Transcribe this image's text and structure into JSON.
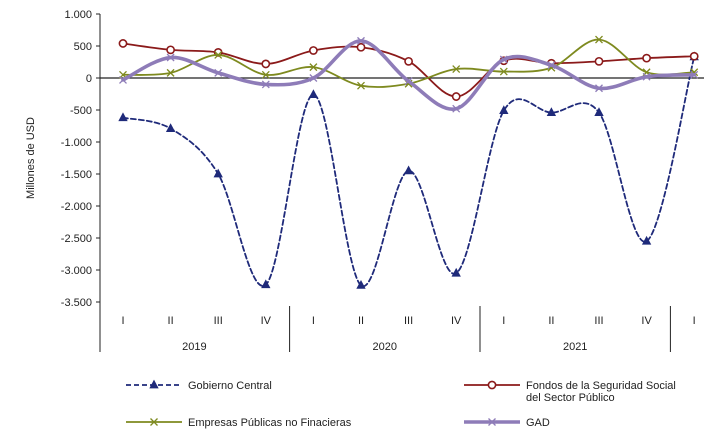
{
  "chart_data": {
    "type": "line",
    "title": "",
    "ylabel": "Millones de USD",
    "ylim": [
      -3500,
      1000
    ],
    "yticks": [
      1000,
      500,
      0,
      -500,
      -1000,
      -1500,
      -2000,
      -2500,
      -3000,
      -3500
    ],
    "ytick_labels": [
      "1.000",
      "500",
      "0",
      "-500",
      "-1.000",
      "-1.500",
      "-2.000",
      "-2.500",
      "-3.000",
      "-3.500"
    ],
    "grid": false,
    "legend_position": "bottom",
    "quarters": [
      "I",
      "II",
      "III",
      "IV",
      "I",
      "II",
      "III",
      "IV",
      "I",
      "II",
      "III",
      "IV",
      "I"
    ],
    "years": [
      {
        "label": "2019",
        "span": [
          0,
          3
        ]
      },
      {
        "label": "2020",
        "span": [
          4,
          7
        ]
      },
      {
        "label": "2021",
        "span": [
          8,
          11
        ]
      }
    ],
    "series": [
      {
        "name": "Gobierno Central",
        "color": "#1f2a7a",
        "style": "dashed",
        "marker": "triangle",
        "values": [
          -620,
          -790,
          -1500,
          -3230,
          -260,
          -3240,
          -1450,
          -3050,
          -510,
          -540,
          -540,
          -2550,
          330
        ]
      },
      {
        "name": "Fondos de la Seguridad Social del Sector Público",
        "color": "#8b1a1a",
        "style": "solid",
        "marker": "circle",
        "values": [
          540,
          440,
          400,
          220,
          430,
          480,
          260,
          -290,
          270,
          230,
          260,
          310,
          340
        ]
      },
      {
        "name": "Empresas Públicas no Finacieras",
        "color": "#7e8a1f",
        "style": "solid",
        "marker": "x",
        "values": [
          50,
          80,
          360,
          50,
          170,
          -120,
          -90,
          140,
          100,
          160,
          600,
          90,
          90
        ]
      },
      {
        "name": "GAD",
        "color": "#8e7cb8",
        "style": "solid-thick",
        "marker": "x",
        "values": [
          -30,
          320,
          80,
          -100,
          0,
          580,
          -50,
          -480,
          290,
          200,
          -160,
          20,
          50
        ]
      }
    ],
    "legend": [
      {
        "series": 0,
        "lines": [
          "Gobierno Central"
        ]
      },
      {
        "series": 1,
        "lines": [
          "Fondos de la Seguridad Social",
          "del Sector Público"
        ]
      },
      {
        "series": 2,
        "lines": [
          "Empresas Públicas no Finacieras"
        ]
      },
      {
        "series": 3,
        "lines": [
          "GAD"
        ]
      }
    ]
  }
}
